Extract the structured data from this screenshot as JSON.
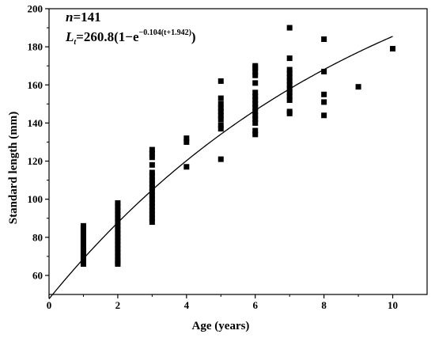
{
  "chart_data": {
    "type": "scatter",
    "xlabel": "Age (years)",
    "ylabel": "Standard length (mm)",
    "xlim": [
      0,
      11
    ],
    "ylim": [
      50,
      200
    ],
    "x_ticks": [
      0,
      2,
      4,
      6,
      8,
      10
    ],
    "y_ticks": [
      60,
      80,
      100,
      120,
      140,
      160,
      180,
      200
    ],
    "grid": false,
    "annotation": {
      "n_label": "n",
      "n_value": "=141",
      "eq_var": "L",
      "eq_sub": "t",
      "eq_main": "=260.8(1−e",
      "eq_exp": "−0.104(t+1.942)",
      "eq_close": ")"
    },
    "points": [
      [
        1,
        66
      ],
      [
        1,
        67
      ],
      [
        1,
        68
      ],
      [
        1,
        69
      ],
      [
        1,
        70
      ],
      [
        1,
        71
      ],
      [
        1,
        72
      ],
      [
        1,
        73
      ],
      [
        1,
        74
      ],
      [
        1,
        75
      ],
      [
        1,
        76
      ],
      [
        1,
        77
      ],
      [
        1,
        78
      ],
      [
        1,
        79
      ],
      [
        1,
        80
      ],
      [
        1,
        81
      ],
      [
        1,
        82
      ],
      [
        1,
        83
      ],
      [
        1,
        84
      ],
      [
        1,
        85
      ],
      [
        1,
        86
      ],
      [
        2,
        66
      ],
      [
        2,
        67
      ],
      [
        2,
        68
      ],
      [
        2,
        70
      ],
      [
        2,
        72
      ],
      [
        2,
        74
      ],
      [
        2,
        76
      ],
      [
        2,
        78
      ],
      [
        2,
        80
      ],
      [
        2,
        82
      ],
      [
        2,
        84
      ],
      [
        2,
        86
      ],
      [
        2,
        88
      ],
      [
        2,
        90
      ],
      [
        2,
        92
      ],
      [
        2,
        94
      ],
      [
        2,
        96
      ],
      [
        2,
        98
      ],
      [
        3,
        88
      ],
      [
        3,
        90
      ],
      [
        3,
        92
      ],
      [
        3,
        94
      ],
      [
        3,
        96
      ],
      [
        3,
        98
      ],
      [
        3,
        100
      ],
      [
        3,
        102
      ],
      [
        3,
        104
      ],
      [
        3,
        106
      ],
      [
        3,
        108
      ],
      [
        3,
        110
      ],
      [
        3,
        112
      ],
      [
        3,
        114
      ],
      [
        3,
        118
      ],
      [
        3,
        122
      ],
      [
        3,
        124
      ],
      [
        3,
        126
      ],
      [
        4,
        117
      ],
      [
        4,
        130
      ],
      [
        4,
        132
      ],
      [
        5,
        121
      ],
      [
        5,
        137
      ],
      [
        5,
        139
      ],
      [
        5,
        142
      ],
      [
        5,
        144
      ],
      [
        5,
        146
      ],
      [
        5,
        148
      ],
      [
        5,
        150
      ],
      [
        5,
        153
      ],
      [
        5,
        162
      ],
      [
        6,
        134
      ],
      [
        6,
        136
      ],
      [
        6,
        140
      ],
      [
        6,
        142
      ],
      [
        6,
        144
      ],
      [
        6,
        146
      ],
      [
        6,
        148
      ],
      [
        6,
        150
      ],
      [
        6,
        152
      ],
      [
        6,
        154
      ],
      [
        6,
        156
      ],
      [
        6,
        161
      ],
      [
        6,
        165
      ],
      [
        6,
        167
      ],
      [
        6,
        169
      ],
      [
        6,
        170
      ],
      [
        7,
        145
      ],
      [
        7,
        146
      ],
      [
        7,
        152
      ],
      [
        7,
        154
      ],
      [
        7,
        156
      ],
      [
        7,
        158
      ],
      [
        7,
        160
      ],
      [
        7,
        162
      ],
      [
        7,
        164
      ],
      [
        7,
        166
      ],
      [
        7,
        168
      ],
      [
        7,
        174
      ],
      [
        7,
        190
      ],
      [
        8,
        144
      ],
      [
        8,
        151
      ],
      [
        8,
        155
      ],
      [
        8,
        167
      ],
      [
        8,
        184
      ],
      [
        9,
        159
      ],
      [
        10,
        179
      ]
    ],
    "curve": {
      "type": "von-bertalanffy",
      "Linf": 260.8,
      "k": 0.104,
      "t0": -1.942,
      "x_range": [
        0,
        10
      ]
    }
  }
}
